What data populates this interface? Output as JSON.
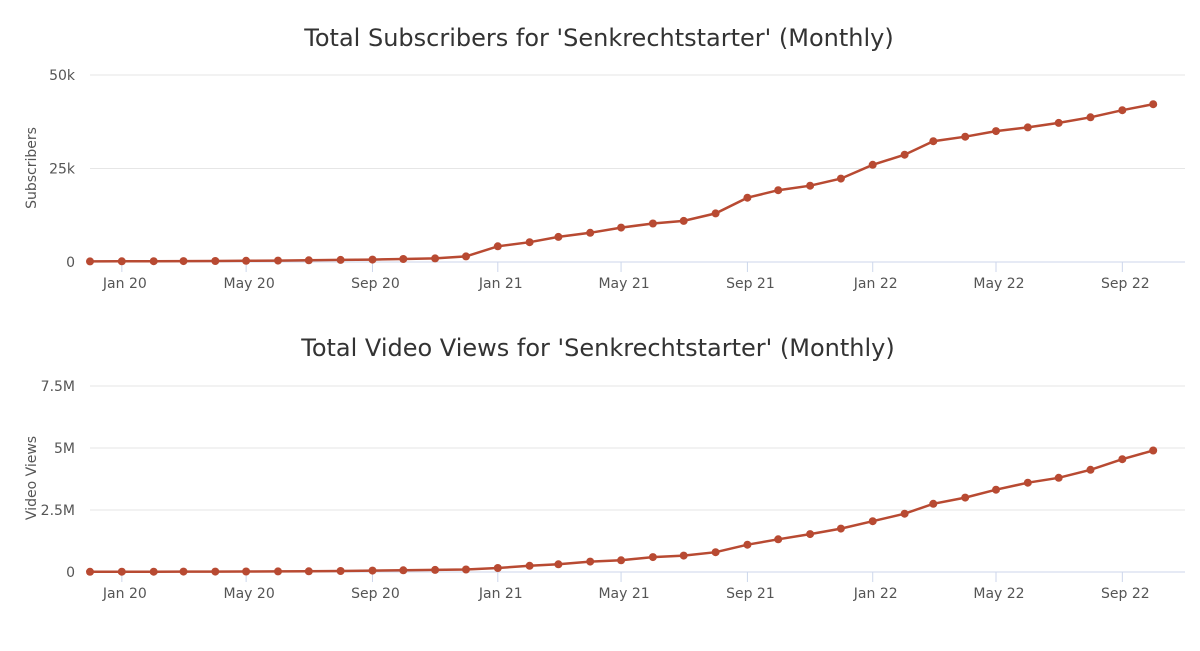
{
  "colors": {
    "series": "#b84a32"
  },
  "chart_data": [
    {
      "type": "line",
      "title": "Total Subscribers for 'Senkrechtstarter' (Monthly)",
      "ylabel": "Subscribers",
      "xlabel": "",
      "ylim": [
        0,
        50000
      ],
      "yticks": [
        {
          "value": 0,
          "label": "0"
        },
        {
          "value": 25000,
          "label": "25k"
        },
        {
          "value": 50000,
          "label": "50k"
        }
      ],
      "xlim": [
        "2019-12-01",
        "2022-11-01"
      ],
      "xticks": [
        {
          "date": "2020-01-01",
          "label": "Jan 20"
        },
        {
          "date": "2020-05-01",
          "label": "May 20"
        },
        {
          "date": "2020-09-01",
          "label": "Sep 20"
        },
        {
          "date": "2021-01-01",
          "label": "Jan 21"
        },
        {
          "date": "2021-05-01",
          "label": "May 21"
        },
        {
          "date": "2021-09-01",
          "label": "Sep 21"
        },
        {
          "date": "2022-01-01",
          "label": "Jan 22"
        },
        {
          "date": "2022-05-01",
          "label": "May 22"
        },
        {
          "date": "2022-09-01",
          "label": "Sep 22"
        }
      ],
      "grid": true,
      "series": [
        {
          "x": [
            "2019-12-01",
            "2020-01-01",
            "2020-02-01",
            "2020-03-01",
            "2020-04-01",
            "2020-05-01",
            "2020-06-01",
            "2020-07-01",
            "2020-08-01",
            "2020-09-01",
            "2020-10-01",
            "2020-11-01",
            "2020-12-01",
            "2021-01-01",
            "2021-02-01",
            "2021-03-01",
            "2021-04-01",
            "2021-05-01",
            "2021-06-01",
            "2021-07-01",
            "2021-08-01",
            "2021-09-01",
            "2021-10-01",
            "2021-11-01",
            "2021-12-01",
            "2022-01-01",
            "2022-02-01",
            "2022-03-01",
            "2022-04-01",
            "2022-05-01",
            "2022-06-01",
            "2022-07-01",
            "2022-08-01",
            "2022-09-01",
            "2022-10-01"
          ],
          "values": [
            150,
            200,
            220,
            250,
            280,
            320,
            380,
            450,
            550,
            650,
            800,
            950,
            1500,
            4200,
            5300,
            6700,
            7800,
            9200,
            10300,
            11000,
            13000,
            17200,
            19200,
            20400,
            22300,
            26000,
            28700,
            32300,
            33500,
            35000,
            36000,
            37200,
            38700,
            40600,
            42200
          ]
        }
      ]
    },
    {
      "type": "line",
      "title": "Total Video Views for 'Senkrechtstarter' (Monthly)",
      "ylabel": "Video Views",
      "xlabel": "",
      "ylim": [
        0,
        7500000
      ],
      "yticks": [
        {
          "value": 0,
          "label": "0"
        },
        {
          "value": 2500000,
          "label": "2.5M"
        },
        {
          "value": 5000000,
          "label": "5M"
        },
        {
          "value": 7500000,
          "label": "7.5M"
        }
      ],
      "xlim": [
        "2019-12-01",
        "2022-11-01"
      ],
      "xticks": [
        {
          "date": "2020-01-01",
          "label": "Jan 20"
        },
        {
          "date": "2020-05-01",
          "label": "May 20"
        },
        {
          "date": "2020-09-01",
          "label": "Sep 20"
        },
        {
          "date": "2021-01-01",
          "label": "Jan 21"
        },
        {
          "date": "2021-05-01",
          "label": "May 21"
        },
        {
          "date": "2021-09-01",
          "label": "Sep 21"
        },
        {
          "date": "2022-01-01",
          "label": "Jan 22"
        },
        {
          "date": "2022-05-01",
          "label": "May 22"
        },
        {
          "date": "2022-09-01",
          "label": "Sep 22"
        }
      ],
      "grid": true,
      "series": [
        {
          "x": [
            "2019-12-01",
            "2020-01-01",
            "2020-02-01",
            "2020-03-01",
            "2020-04-01",
            "2020-05-01",
            "2020-06-01",
            "2020-07-01",
            "2020-08-01",
            "2020-09-01",
            "2020-10-01",
            "2020-11-01",
            "2020-12-01",
            "2021-01-01",
            "2021-02-01",
            "2021-03-01",
            "2021-04-01",
            "2021-05-01",
            "2021-06-01",
            "2021-07-01",
            "2021-08-01",
            "2021-09-01",
            "2021-10-01",
            "2021-11-01",
            "2021-12-01",
            "2022-01-01",
            "2022-02-01",
            "2022-03-01",
            "2022-04-01",
            "2022-05-01",
            "2022-06-01",
            "2022-07-01",
            "2022-08-01",
            "2022-09-01",
            "2022-10-01"
          ],
          "values": [
            10000,
            12000,
            14000,
            16000,
            18000,
            20000,
            25000,
            30000,
            40000,
            55000,
            70000,
            85000,
            100000,
            160000,
            250000,
            310000,
            420000,
            470000,
            600000,
            660000,
            800000,
            1100000,
            1320000,
            1530000,
            1750000,
            2050000,
            2350000,
            2750000,
            3000000,
            3320000,
            3600000,
            3800000,
            4120000,
            4550000,
            4900000
          ]
        }
      ]
    }
  ]
}
